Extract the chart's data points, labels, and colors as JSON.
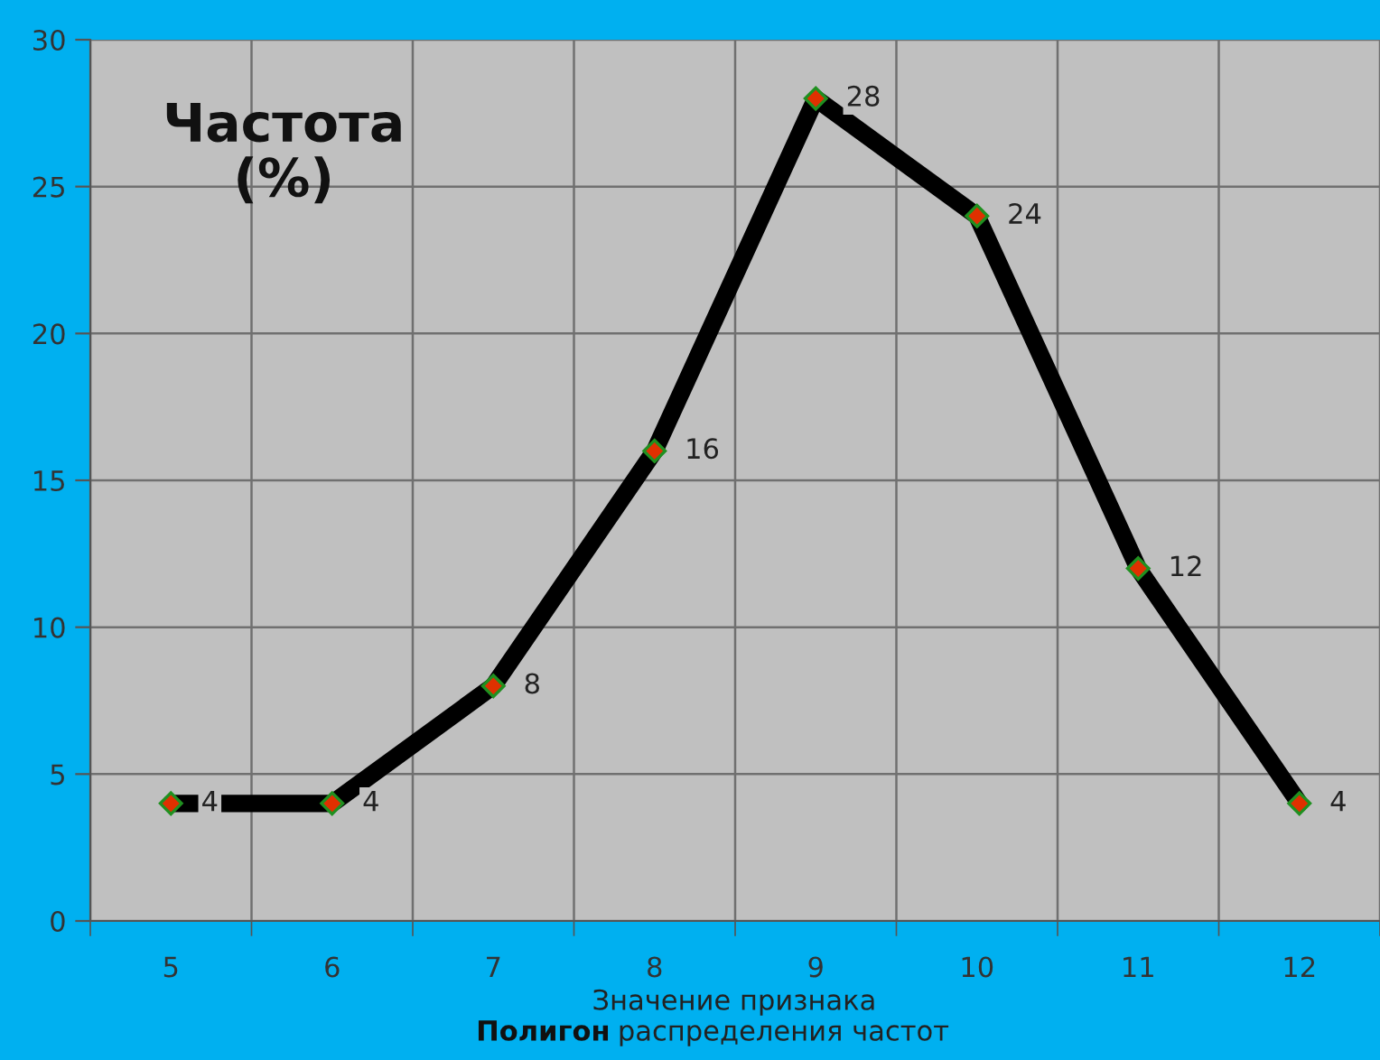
{
  "chart_data": {
    "type": "line",
    "title": "Полигон распределения частот",
    "xlabel": "Значение признака",
    "ylabel": "Частота\n(%)",
    "categories": [
      "5",
      "6",
      "7",
      "8",
      "9",
      "10",
      "11",
      "12"
    ],
    "series": [
      {
        "color": "#000000",
        "values": [
          4,
          4,
          8,
          16,
          28,
          24,
          12,
          4
        ]
      }
    ],
    "ylim": [
      0,
      30
    ],
    "yticks": [
      0,
      5,
      10,
      15,
      20,
      25,
      30
    ],
    "grid": true,
    "legend": false,
    "marker": "diamond",
    "line_style": "solid",
    "data_labels": true
  }
}
